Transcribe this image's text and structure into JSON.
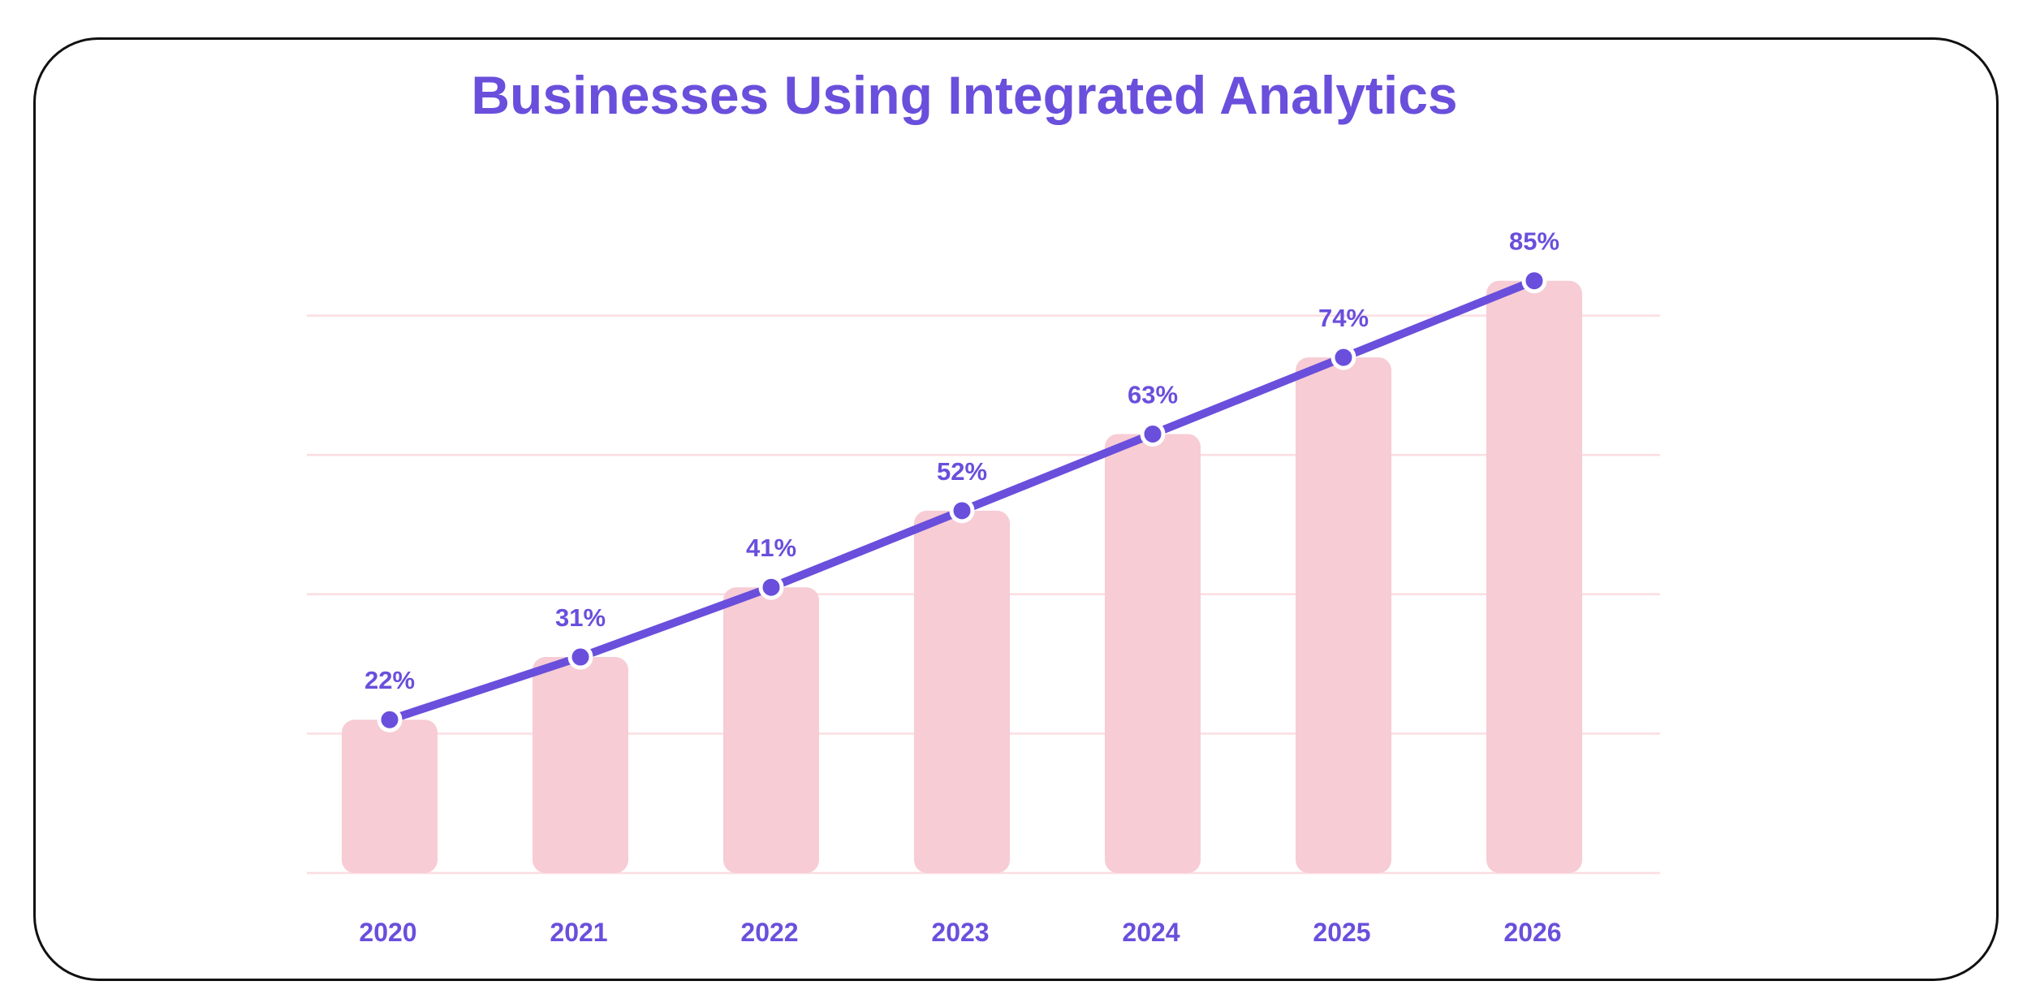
{
  "colors": {
    "title": "#6a4fdc",
    "bar": "#f7ccd4",
    "line": "#6a4fdc",
    "marker_fill": "#6a4fdc",
    "marker_stroke": "#ffffff",
    "grid": "#fbdde2",
    "label": "#6a4fdc",
    "frame": "#111111"
  },
  "chart_data": {
    "type": "bar",
    "title": "Businesses Using Integrated Analytics",
    "xlabel": "",
    "ylabel": "",
    "categories": [
      "2020",
      "2021",
      "2022",
      "2023",
      "2024",
      "2025",
      "2026"
    ],
    "values": [
      22,
      31,
      41,
      52,
      63,
      74,
      85
    ],
    "value_labels": [
      "22%",
      "31%",
      "41%",
      "52%",
      "63%",
      "74%",
      "85%"
    ],
    "unit": "%",
    "ylim": [
      0,
      80
    ],
    "grid": true,
    "overlay_line": true,
    "legend": "none"
  }
}
